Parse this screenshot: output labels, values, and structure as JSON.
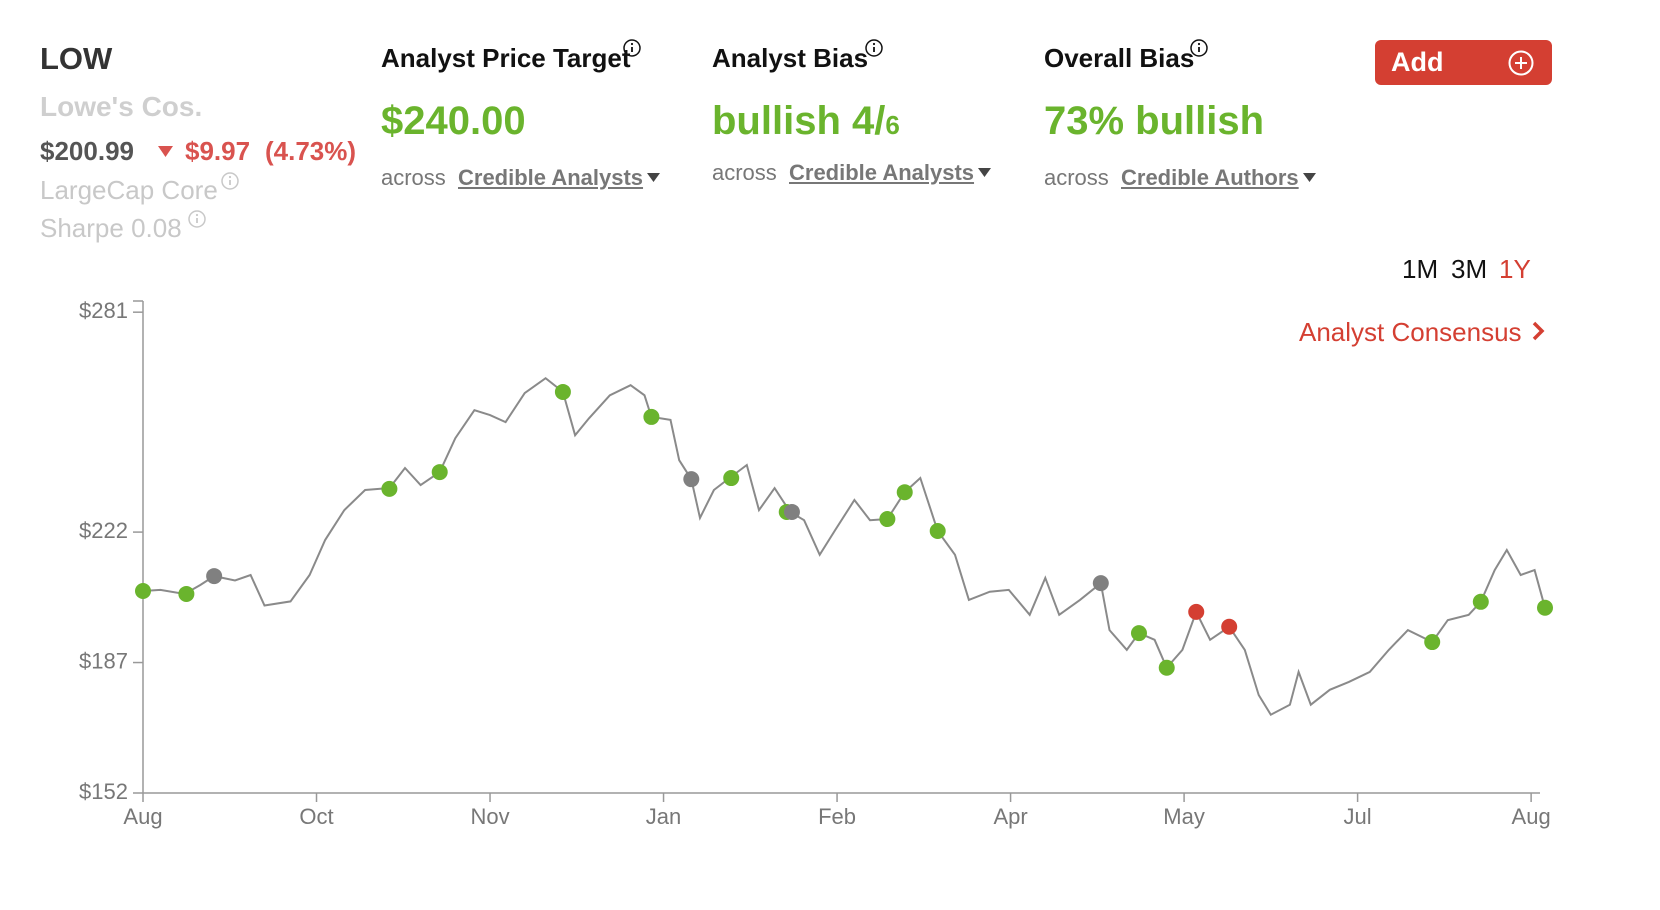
{
  "header": {
    "ticker": "LOW",
    "company": "Lowe's Cos.",
    "price": "$200.99",
    "change": "$9.97",
    "change_pct": "(4.73%)",
    "style": "LargeCap Core",
    "sharpe": "Sharpe 0.08",
    "add_button": "Add"
  },
  "metrics": [
    {
      "title": "Analyst Price Target",
      "value": "$240.00",
      "prefix": "across",
      "source": "Credible Analysts"
    },
    {
      "title": "Analyst Bias",
      "value": "bullish 4/",
      "value_small": "6",
      "prefix": "across",
      "source": "Credible Analysts"
    },
    {
      "title": "Overall Bias",
      "value": "73% bullish",
      "prefix": "across",
      "source": "Credible Authors"
    }
  ],
  "ranges": [
    "1M",
    "3M",
    "1Y"
  ],
  "active_range_index": 2,
  "consensus_link": "Analyst Consensus",
  "chart_data": {
    "type": "line",
    "xlim": [
      0,
      8.08
    ],
    "xticks": [
      {
        "value": 0,
        "label": "Aug"
      },
      {
        "value": 1,
        "label": "Oct"
      },
      {
        "value": 2,
        "label": "Nov"
      },
      {
        "value": 3,
        "label": "Jan"
      },
      {
        "value": 4,
        "label": "Feb"
      },
      {
        "value": 5,
        "label": "Apr"
      },
      {
        "value": 6,
        "label": "May"
      },
      {
        "value": 7,
        "label": "Jul"
      },
      {
        "value": 8,
        "label": "Aug"
      }
    ],
    "ylim": [
      152,
      284
    ],
    "yticks": [
      {
        "value": 281,
        "label": "$281"
      },
      {
        "value": 222,
        "label": "$222"
      },
      {
        "value": 187,
        "label": "$187"
      },
      {
        "value": 152,
        "label": "$152"
      }
    ],
    "line": {
      "color": "#8a8a8a",
      "x": [
        0,
        0.1,
        0.24,
        0.33,
        0.41,
        0.53,
        0.62,
        0.7,
        0.85,
        0.96,
        1.05,
        1.16,
        1.28,
        1.42,
        1.51,
        1.6,
        1.71,
        1.8,
        1.91,
        2.0,
        2.09,
        2.2,
        2.32,
        2.42,
        2.49,
        2.57,
        2.69,
        2.81,
        2.89,
        2.93,
        3.04,
        3.09,
        3.16,
        3.21,
        3.29,
        3.38,
        3.48,
        3.55,
        3.64,
        3.73,
        3.81,
        3.9,
        3.99,
        4.1,
        4.19,
        4.29,
        4.39,
        4.48,
        4.58,
        4.68,
        4.76,
        4.88,
        4.99,
        5.11,
        5.2,
        5.28,
        5.4,
        5.52,
        5.57,
        5.67,
        5.74,
        5.83,
        5.9,
        5.99,
        6.07,
        6.15,
        6.26,
        6.35,
        6.43,
        6.5,
        6.61,
        6.66,
        6.73,
        6.84,
        6.95,
        7.07,
        7.18,
        7.29,
        7.43,
        7.52,
        7.64,
        7.71,
        7.79,
        7.86,
        7.94,
        8.02,
        8.08
      ],
      "values": [
        206.2,
        206.5,
        205.4,
        207.8,
        210.2,
        209,
        210.5,
        202.3,
        203.4,
        210.5,
        219.9,
        227.9,
        233.3,
        233.8,
        239.2,
        234.6,
        238.1,
        247.2,
        254.7,
        253.4,
        251.5,
        259.3,
        263.3,
        259.6,
        248,
        252.5,
        258.7,
        261.4,
        258.7,
        252.9,
        252.1,
        241.3,
        236.2,
        225.8,
        233.3,
        236.5,
        240,
        227.9,
        233.8,
        227.4,
        225.2,
        215.9,
        222.6,
        230.6,
        225.2,
        225.5,
        232.7,
        236.5,
        222.3,
        215.9,
        203.8,
        206,
        206.5,
        199.8,
        209.7,
        199.8,
        203.8,
        208.3,
        195.7,
        190.4,
        194.9,
        193.1,
        185.6,
        190.4,
        200.6,
        193.1,
        196.6,
        190.4,
        178.3,
        173,
        175.7,
        184.5,
        175.7,
        179.7,
        181.8,
        184.5,
        190.4,
        195.7,
        192.5,
        198.4,
        199.8,
        203.3,
        211.8,
        217.2,
        210.5,
        211.8,
        201.7
      ]
    },
    "points": {
      "x": [
        0,
        0.25,
        0.41,
        1.42,
        1.71,
        2.42,
        2.93,
        3.16,
        3.39,
        3.71,
        3.74,
        4.29,
        4.39,
        4.58,
        5.52,
        5.74,
        5.9,
        6.07,
        6.26,
        7.43,
        7.71,
        8.08
      ],
      "values": [
        206.2,
        205.4,
        210.2,
        233.6,
        238.1,
        259.6,
        252.9,
        236.2,
        236.5,
        227.4,
        227.4,
        225.5,
        232.7,
        222.3,
        208.3,
        194.9,
        185.6,
        200.6,
        196.6,
        192.5,
        203.3,
        201.7
      ],
      "colors": [
        "#6ab42d",
        "#6ab42d",
        "#808080",
        "#6ab42d",
        "#6ab42d",
        "#6ab42d",
        "#6ab42d",
        "#808080",
        "#6ab42d",
        "#6ab42d",
        "#808080",
        "#6ab42d",
        "#6ab42d",
        "#6ab42d",
        "#808080",
        "#6ab42d",
        "#6ab42d",
        "#d43f32",
        "#d43f32",
        "#6ab42d",
        "#6ab42d",
        "#6ab42d"
      ]
    }
  }
}
